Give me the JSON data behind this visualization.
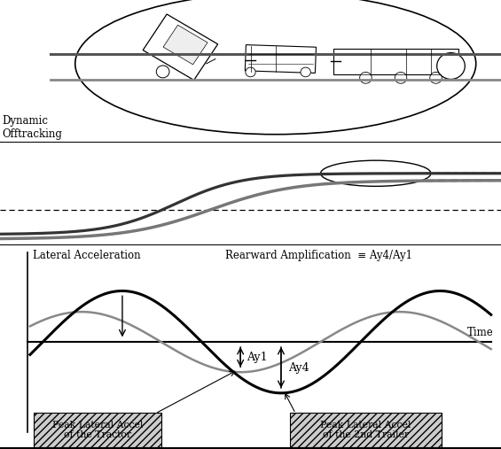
{
  "title_lateral": "Lateral Acceleration",
  "title_rearward": "Rearward Amplification  ≡ Ay4/Ay1",
  "label_time": "Time",
  "label_dynamic": "Dynamic\nOfftracking",
  "label_ay1": "Ay1",
  "label_ay4": "Ay4",
  "label_tractor_box": "Peak Lateral Accel\nof the Tractor",
  "label_trailer_box": "Peak Lateral Accel\nof the 2nd Trailer",
  "bg_color": "#ffffff",
  "gray_color": "#888888",
  "gray_light": "#aaaaaa",
  "black": "#000000",
  "gray_wave_amp": 0.62,
  "gray_wave_freq": 1.45,
  "gray_wave_phase": 0.55,
  "black_wave_amp": 1.05,
  "black_wave_freq": 1.45,
  "black_wave_phase": -0.25
}
